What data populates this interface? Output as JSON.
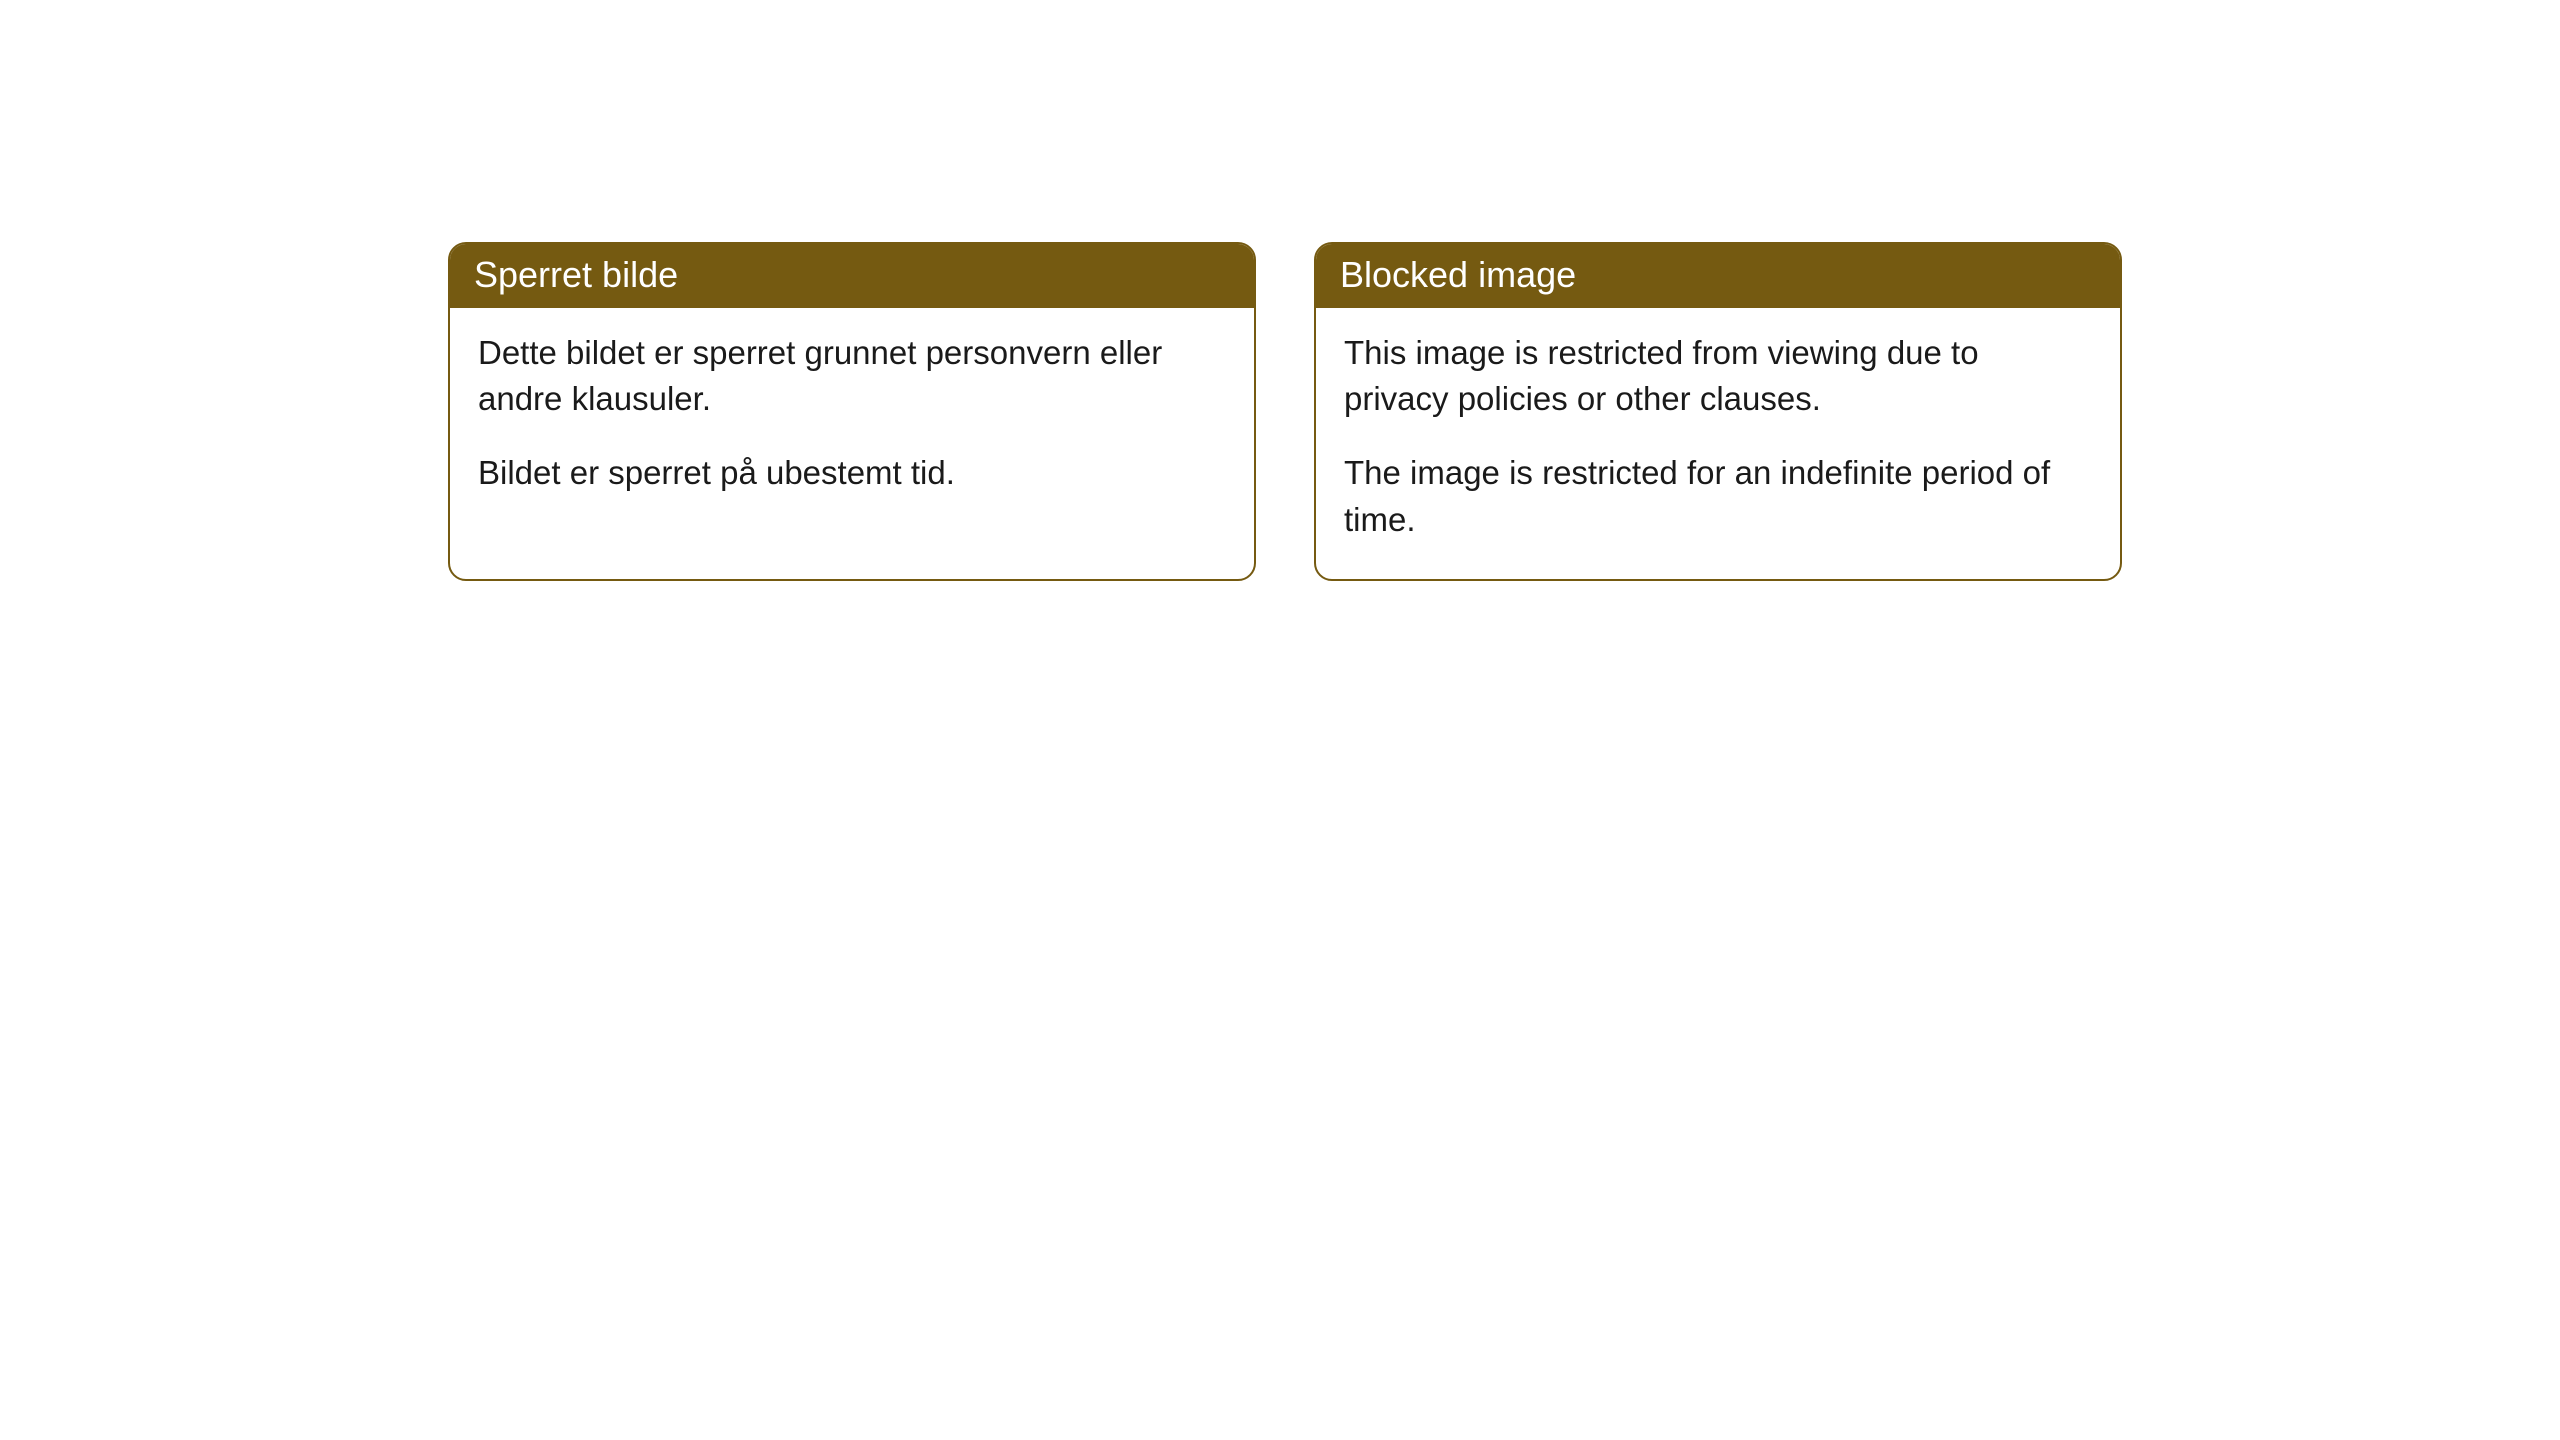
{
  "cards": [
    {
      "title": "Sperret bilde",
      "paragraph1": "Dette bildet er sperret grunnet personvern eller andre klausuler.",
      "paragraph2": "Bildet er sperret på ubestemt tid."
    },
    {
      "title": "Blocked image",
      "paragraph1": "This image is restricted from viewing due to privacy policies or other clauses.",
      "paragraph2": "The image is restricted for an indefinite period of time."
    }
  ],
  "style": {
    "header_background": "#755a11",
    "header_text_color": "#ffffff",
    "border_color": "#755a11",
    "body_background": "#ffffff",
    "body_text_color": "#1a1a1a",
    "border_radius": 18,
    "title_fontsize": 36,
    "body_fontsize": 33
  }
}
